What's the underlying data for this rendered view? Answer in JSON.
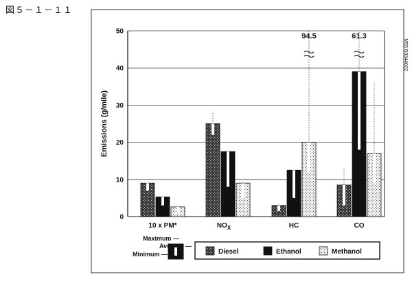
{
  "figure_label": "図５－１－１１",
  "code": "M55 B0344022",
  "chart_data": {
    "type": "bar",
    "title": "",
    "xlabel": "",
    "ylabel": "Emissions (g/mile)",
    "ylim": [
      0,
      50
    ],
    "yticks": [
      0,
      10,
      20,
      30,
      40,
      50
    ],
    "grid": true,
    "categories": [
      "10 x PM*",
      "NOx",
      "HC",
      "CO"
    ],
    "series": [
      {
        "name": "Diesel",
        "pattern": "dark-stipple",
        "average": [
          9.0,
          25.0,
          3.0,
          8.5
        ],
        "minimum": [
          7.0,
          22.0,
          1.5,
          3.0
        ],
        "maximum": [
          9.0,
          28.0,
          3.5,
          13.0
        ]
      },
      {
        "name": "Ethanol",
        "pattern": "solid-black",
        "average": [
          5.3,
          17.5,
          12.5,
          39.0
        ],
        "minimum": [
          3.0,
          8.0,
          5.0,
          18.0
        ],
        "maximum": [
          5.3,
          17.5,
          12.5,
          61.3
        ]
      },
      {
        "name": "Methanol",
        "pattern": "light-stipple",
        "average": [
          2.6,
          9.0,
          20.0,
          17.0
        ],
        "minimum": [
          1.0,
          5.0,
          12.0,
          9.0
        ],
        "maximum": [
          2.8,
          9.5,
          94.5,
          36.0
        ]
      }
    ],
    "annotations": [
      {
        "category": "HC",
        "series": "Methanol",
        "text": "94.5",
        "note": "axis break"
      },
      {
        "category": "CO",
        "series": "Ethanol",
        "text": "61.3",
        "note": "axis break"
      }
    ],
    "range_key": {
      "maximum": "Maximum",
      "average": "Average",
      "minimum": "Minimum"
    },
    "legend_placement": "bottom"
  }
}
